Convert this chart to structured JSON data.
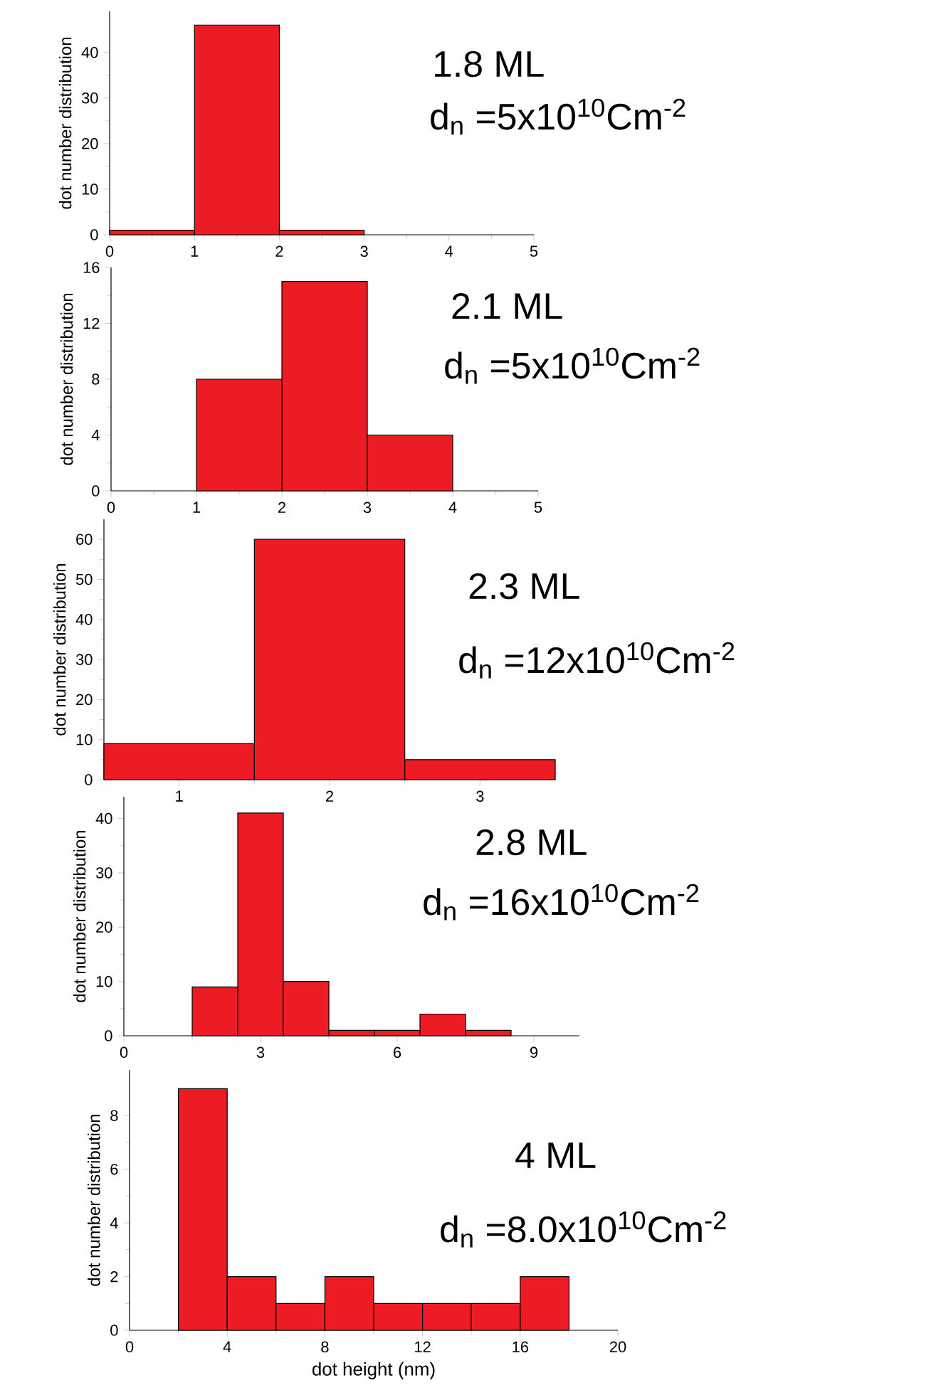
{
  "chart_data": [
    {
      "type": "histogram",
      "title": "1.8 ML",
      "subtitle": "d$_{n}$ =5x10$^{10}$Cm$^{-2}$",
      "ylabel": "dot number distribution",
      "bins": [
        0,
        1,
        2,
        3
      ],
      "values": [
        1,
        46,
        1
      ],
      "color": "#ed1c24",
      "xlim": [
        0,
        5
      ],
      "xticks": [
        0,
        1,
        2,
        3,
        4,
        5
      ],
      "ylim": [
        0,
        49
      ],
      "yticks": [
        0,
        10,
        20,
        30,
        40
      ]
    },
    {
      "type": "histogram",
      "title": "2.1 ML",
      "subtitle": "d$_{n}$ =5x10$^{10}$Cm$^{-2}$",
      "ylabel": "dot number distribution",
      "bins": [
        1,
        2,
        3,
        4
      ],
      "values": [
        8,
        15,
        4
      ],
      "color": "#ed1c24",
      "xlim": [
        0,
        5
      ],
      "xticks": [
        0,
        1,
        2,
        3,
        4,
        5
      ],
      "ylim": [
        0,
        16
      ],
      "yticks": [
        0,
        4,
        8,
        12,
        16
      ]
    },
    {
      "type": "histogram",
      "title": "2.3 ML",
      "subtitle": "d$_{n}$ =12x10$^{10}$Cm$^{-2}$",
      "ylabel": "dot number distribution",
      "bins": [
        0.5,
        1.5,
        2.5,
        3.5
      ],
      "values": [
        9,
        60,
        5
      ],
      "color": "#ed1c24",
      "xlim": [
        0.5,
        3.5
      ],
      "xticks": [
        1,
        2,
        3
      ],
      "ylim": [
        0,
        65
      ],
      "yticks": [
        0,
        10,
        20,
        30,
        40,
        50,
        60
      ]
    },
    {
      "type": "histogram",
      "title": "2.8 ML",
      "subtitle": "d$_{n}$ =16x10$^{10}$Cm$^{-2}$",
      "ylabel": "dot number distribution",
      "bins": [
        1.5,
        2.5,
        3.5,
        4.5,
        5.5,
        6.5,
        7.5,
        8.5
      ],
      "values": [
        9,
        41,
        10,
        1,
        1,
        4,
        1
      ],
      "color": "#ed1c24",
      "xlim": [
        0,
        10
      ],
      "xticks": [
        0,
        3,
        6,
        9
      ],
      "ylim": [
        0,
        44
      ],
      "yticks": [
        0,
        10,
        20,
        30,
        40
      ]
    },
    {
      "type": "histogram",
      "title": "4 ML",
      "subtitle": "d$_{n}$ =8.0x10$^{10}$Cm$^{-2}$",
      "ylabel": "dot number distribution",
      "xlabel": "dot height (nm)",
      "bins": [
        2,
        4,
        6,
        8,
        10,
        12,
        14,
        16,
        18
      ],
      "values": [
        9,
        2,
        1,
        2,
        1,
        1,
        1,
        2
      ],
      "color": "#ed1c24",
      "xlim": [
        0,
        20
      ],
      "xticks": [
        0,
        4,
        8,
        12,
        16,
        20
      ],
      "ylim": [
        0,
        9.7
      ],
      "yticks": [
        0,
        2,
        4,
        6,
        8
      ]
    }
  ]
}
